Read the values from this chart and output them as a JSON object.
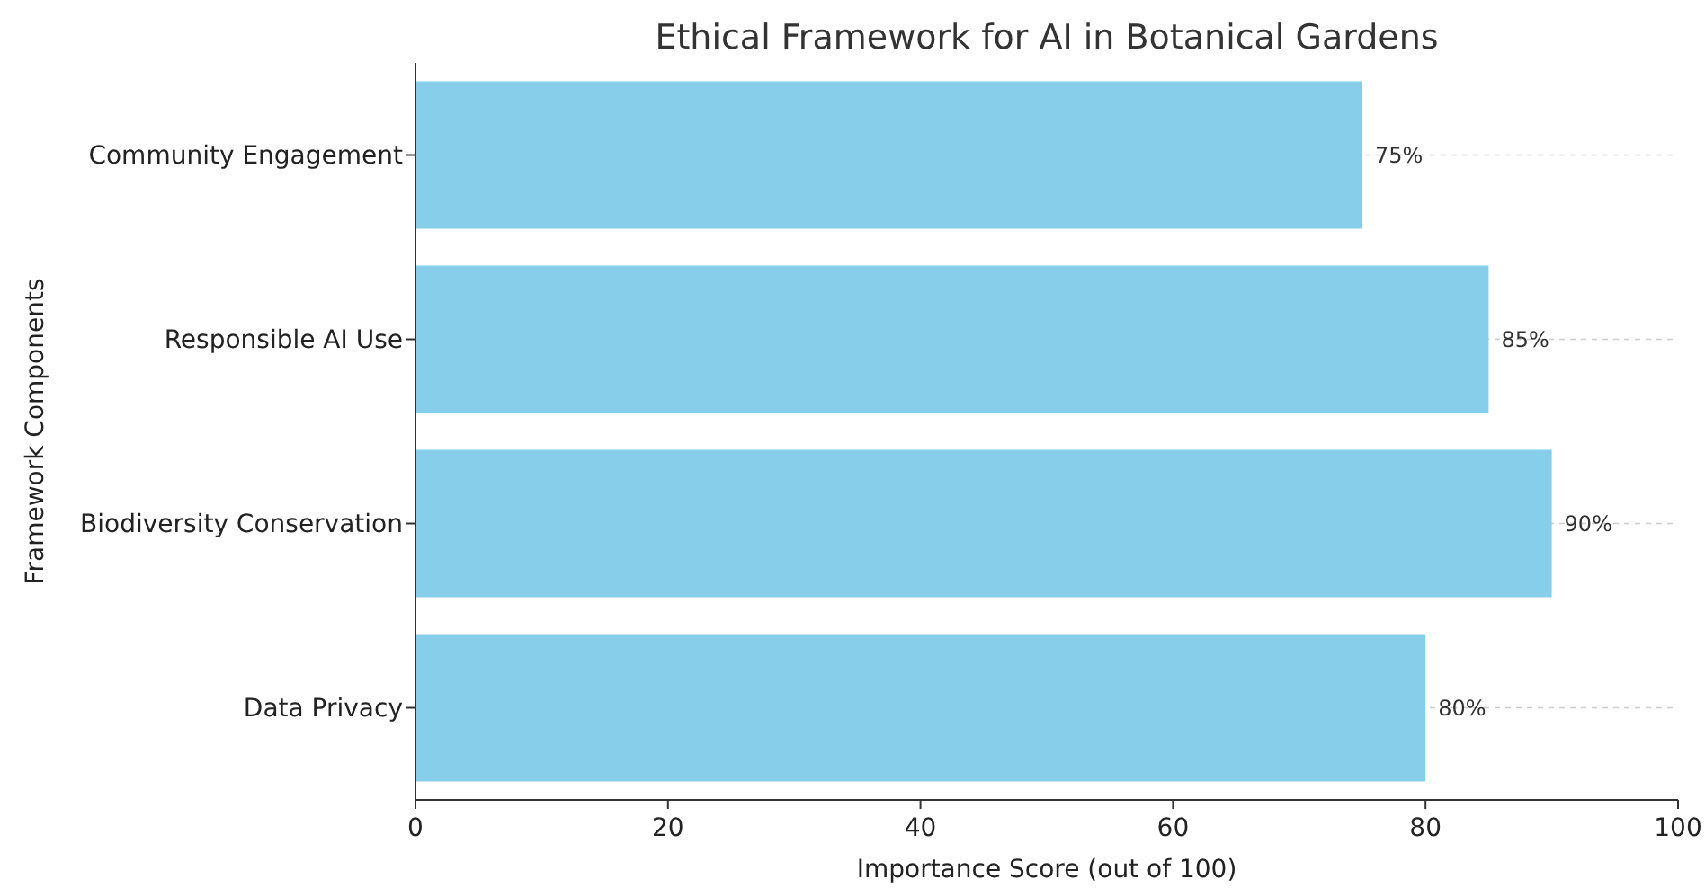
{
  "chart_data": {
    "type": "bar",
    "orientation": "horizontal",
    "title": "Ethical Framework for AI in Botanical Gardens",
    "xlabel": "Importance Score (out of 100)",
    "ylabel": "Framework Components",
    "categories": [
      "Community Engagement",
      "Responsible AI Use",
      "Biodiversity Conservation",
      "Data Privacy"
    ],
    "values": [
      75,
      85,
      90,
      80
    ],
    "color": "#87ceeb",
    "value_labels": [
      "75%",
      "85%",
      "90%",
      "80%"
    ],
    "xlim": [
      0,
      100
    ],
    "xticks": [
      0,
      20,
      40,
      60,
      80,
      100
    ],
    "grid": "y"
  }
}
